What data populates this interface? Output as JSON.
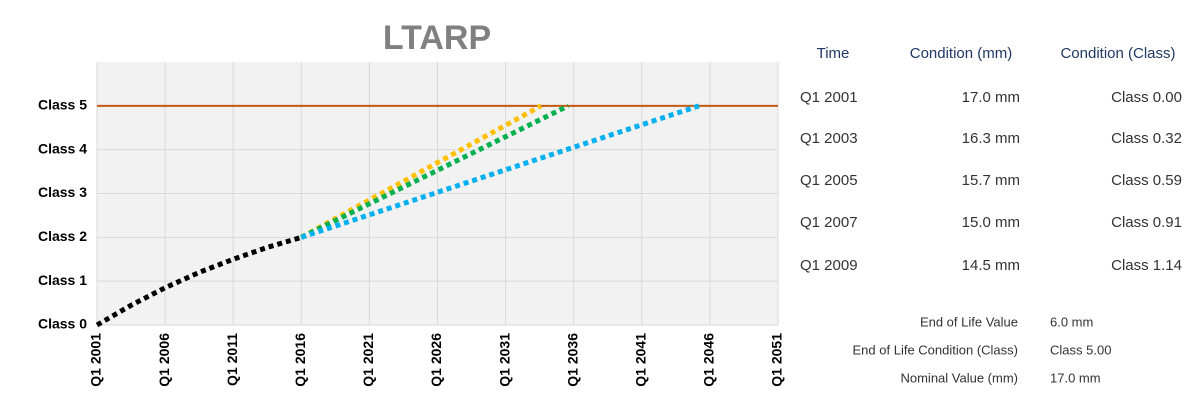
{
  "chart_data": {
    "type": "line",
    "title": "LTARP",
    "xlim": [
      2001,
      2051
    ],
    "xticks": [
      {
        "value": 2001,
        "label": "Q1 2001"
      },
      {
        "value": 2006,
        "label": "Q1 2006"
      },
      {
        "value": 2011,
        "label": "Q1 2011"
      },
      {
        "value": 2016,
        "label": "Q1 2016"
      },
      {
        "value": 2021,
        "label": "Q1 2021"
      },
      {
        "value": 2026,
        "label": "Q1 2026"
      },
      {
        "value": 2031,
        "label": "Q1 2031"
      },
      {
        "value": 2036,
        "label": "Q1 2036"
      },
      {
        "value": 2041,
        "label": "Q1 2041"
      },
      {
        "value": 2046,
        "label": "Q1 2046"
      },
      {
        "value": 2051,
        "label": "Q1 2051"
      }
    ],
    "ylim": [
      0,
      6
    ],
    "yticks": [
      {
        "value": 0,
        "label": "Class 0"
      },
      {
        "value": 1,
        "label": "Class 1"
      },
      {
        "value": 2,
        "label": "Class 2"
      },
      {
        "value": 3,
        "label": "Class 3"
      },
      {
        "value": 4,
        "label": "Class 4"
      },
      {
        "value": 5,
        "label": "Class 5"
      }
    ],
    "grid": true,
    "series": [
      {
        "color": "#c55a11",
        "line_style": "solid",
        "x": [
          2001,
          2051
        ],
        "values": [
          5.0,
          5.0
        ]
      },
      {
        "color": "#000000",
        "line_style": "dotted",
        "x": [
          2001,
          2003.5,
          2006,
          2008.5,
          2011,
          2013.5,
          2016
        ],
        "values": [
          0,
          0.45,
          0.85,
          1.2,
          1.5,
          1.77,
          2.0
        ]
      },
      {
        "color": "#ffc000",
        "line_style": "dotted",
        "x": [
          2016,
          2033.6
        ],
        "values": [
          2.0,
          5.0
        ]
      },
      {
        "color": "#00b050",
        "line_style": "dotted",
        "x": [
          2016,
          2035.6
        ],
        "values": [
          2.0,
          5.0
        ]
      },
      {
        "color": "#00b0f0",
        "line_style": "dotted",
        "x": [
          2016,
          2045.2
        ],
        "values": [
          2.0,
          5.0
        ]
      }
    ]
  },
  "table": {
    "headers": [
      "Time",
      "Condition (mm)",
      "Condition (Class)"
    ],
    "rows": [
      [
        "Q1 2001",
        "17.0 mm",
        "Class 0.00"
      ],
      [
        "Q1 2003",
        "16.3 mm",
        "Class 0.32"
      ],
      [
        "Q1 2005",
        "15.7 mm",
        "Class 0.59"
      ],
      [
        "Q1 2007",
        "15.0 mm",
        "Class 0.91"
      ],
      [
        "Q1 2009",
        "14.5 mm",
        "Class 1.14"
      ]
    ]
  },
  "summary": [
    [
      "End of Life Value",
      "6.0 mm"
    ],
    [
      "End of Life Condition (Class)",
      "Class 5.00"
    ],
    [
      "Nominal Value (mm)",
      "17.0 mm"
    ]
  ]
}
